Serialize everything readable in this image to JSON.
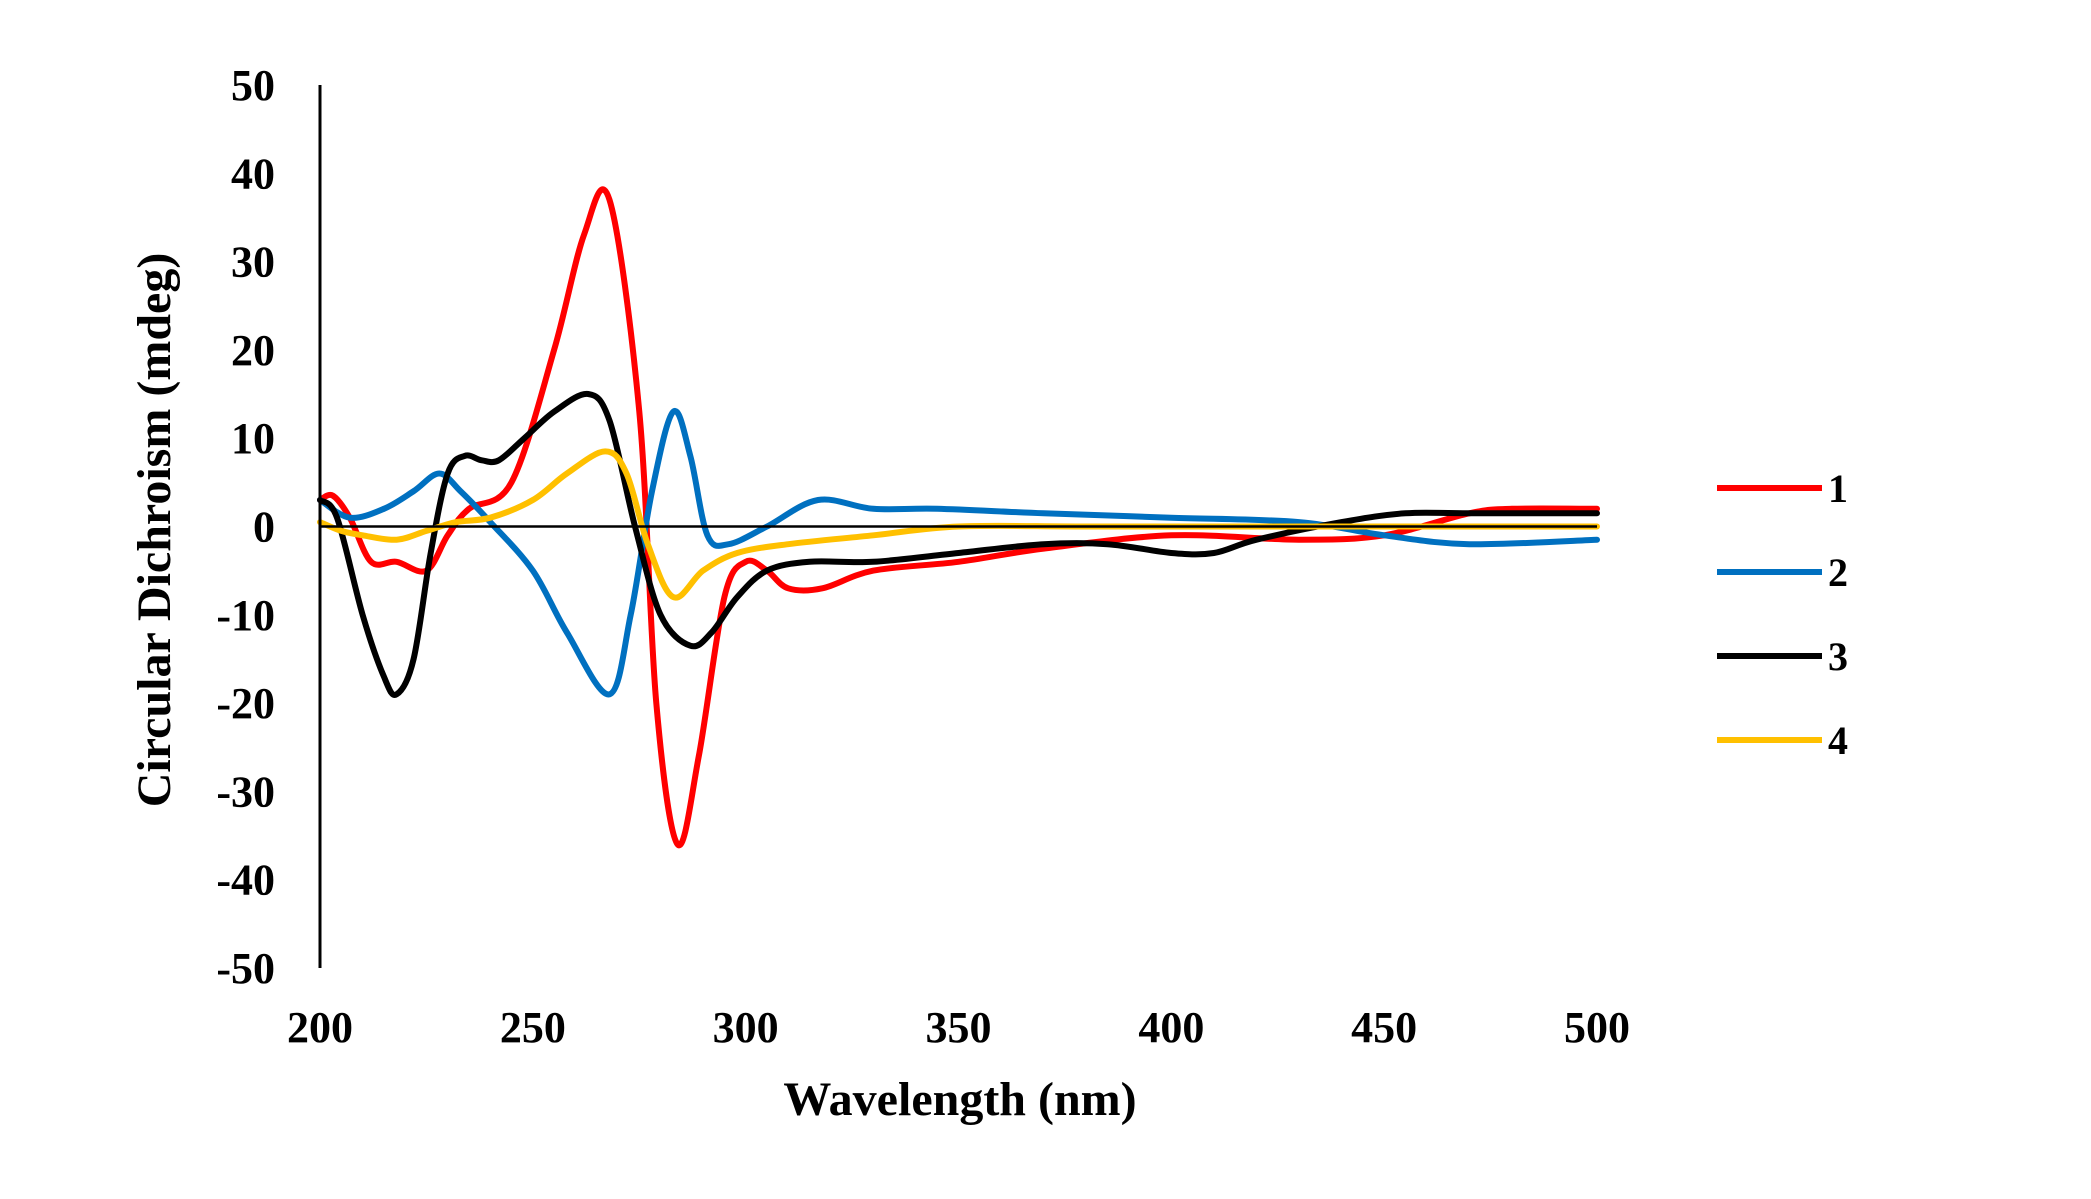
{
  "chart_data": {
    "type": "line",
    "title": "",
    "xlabel": "Wavelength (nm)",
    "ylabel": "Circular  Dichroism (mdeg)",
    "xlim": [
      200,
      500
    ],
    "ylim": [
      -50,
      50
    ],
    "x_ticks": [
      200,
      250,
      300,
      350,
      400,
      450,
      500
    ],
    "y_ticks": [
      50,
      40,
      30,
      20,
      10,
      0,
      -10,
      -20,
      -30,
      -40,
      -50
    ],
    "x_tick_labels": [
      "200",
      "250",
      "300",
      "350",
      "400",
      "450",
      "500"
    ],
    "y_tick_labels": [
      "50",
      "40",
      "30",
      "20",
      "10",
      "0",
      "-10",
      "-20",
      "-30",
      "-40",
      "-50"
    ],
    "grid": false,
    "legend_position": "right",
    "series": [
      {
        "name": "1",
        "color": "#ff0000",
        "x": [
          200,
          203,
          207,
          212,
          218,
          225,
          230,
          235,
          245,
          255,
          262,
          268,
          275,
          279,
          284,
          289,
          295,
          300,
          305,
          310,
          318,
          330,
          350,
          370,
          400,
          430,
          450,
          470,
          480,
          500
        ],
        "y": [
          3,
          3.5,
          1,
          -4,
          -4,
          -5,
          -1,
          2,
          5,
          20,
          33,
          37,
          13,
          -20,
          -36,
          -26,
          -8,
          -4,
          -5,
          -7,
          -7,
          -5,
          -4,
          -2.5,
          -1,
          -1.5,
          -1,
          1.5,
          2,
          2
        ]
      },
      {
        "name": "2",
        "color": "#0070c0",
        "x": [
          200,
          207,
          215,
          222,
          228,
          233,
          240,
          250,
          258,
          268,
          273,
          278,
          283,
          287,
          291,
          296,
          305,
          317,
          330,
          345,
          370,
          400,
          430,
          450,
          470,
          500
        ],
        "y": [
          3,
          1,
          2,
          4,
          6,
          4,
          0.5,
          -5,
          -12,
          -19,
          -10,
          4,
          13,
          8,
          -1,
          -2,
          0,
          3,
          2,
          2,
          1.5,
          1,
          0.5,
          -1,
          -2,
          -1.5
        ]
      },
      {
        "name": "3",
        "color": "#000000",
        "x": [
          200,
          204,
          210,
          215,
          218,
          222,
          226,
          230,
          234,
          238,
          242,
          248,
          255,
          263,
          268,
          274,
          280,
          287,
          292,
          298,
          305,
          315,
          330,
          350,
          370,
          385,
          400,
          410,
          420,
          440,
          455,
          470,
          500
        ],
        "y": [
          3,
          1,
          -10,
          -17,
          -19,
          -15,
          -3,
          6,
          8,
          7.5,
          7.5,
          10,
          13,
          15,
          12,
          0,
          -10,
          -13.5,
          -12,
          -8,
          -5,
          -4,
          -4,
          -3,
          -2,
          -2,
          -3,
          -3,
          -1.5,
          0.5,
          1.5,
          1.5,
          1.5
        ]
      },
      {
        "name": "4",
        "color": "#ffc000",
        "x": [
          200,
          205,
          210,
          218,
          225,
          232,
          240,
          250,
          258,
          267,
          272,
          277,
          283,
          290,
          298,
          310,
          330,
          350,
          380,
          420,
          460,
          500
        ],
        "y": [
          0.5,
          -0.5,
          -1,
          -1.5,
          -0.5,
          0.5,
          1,
          3,
          6,
          8.5,
          6,
          -2,
          -8,
          -5,
          -3,
          -2,
          -1,
          0,
          0,
          0,
          0,
          0
        ]
      }
    ]
  }
}
